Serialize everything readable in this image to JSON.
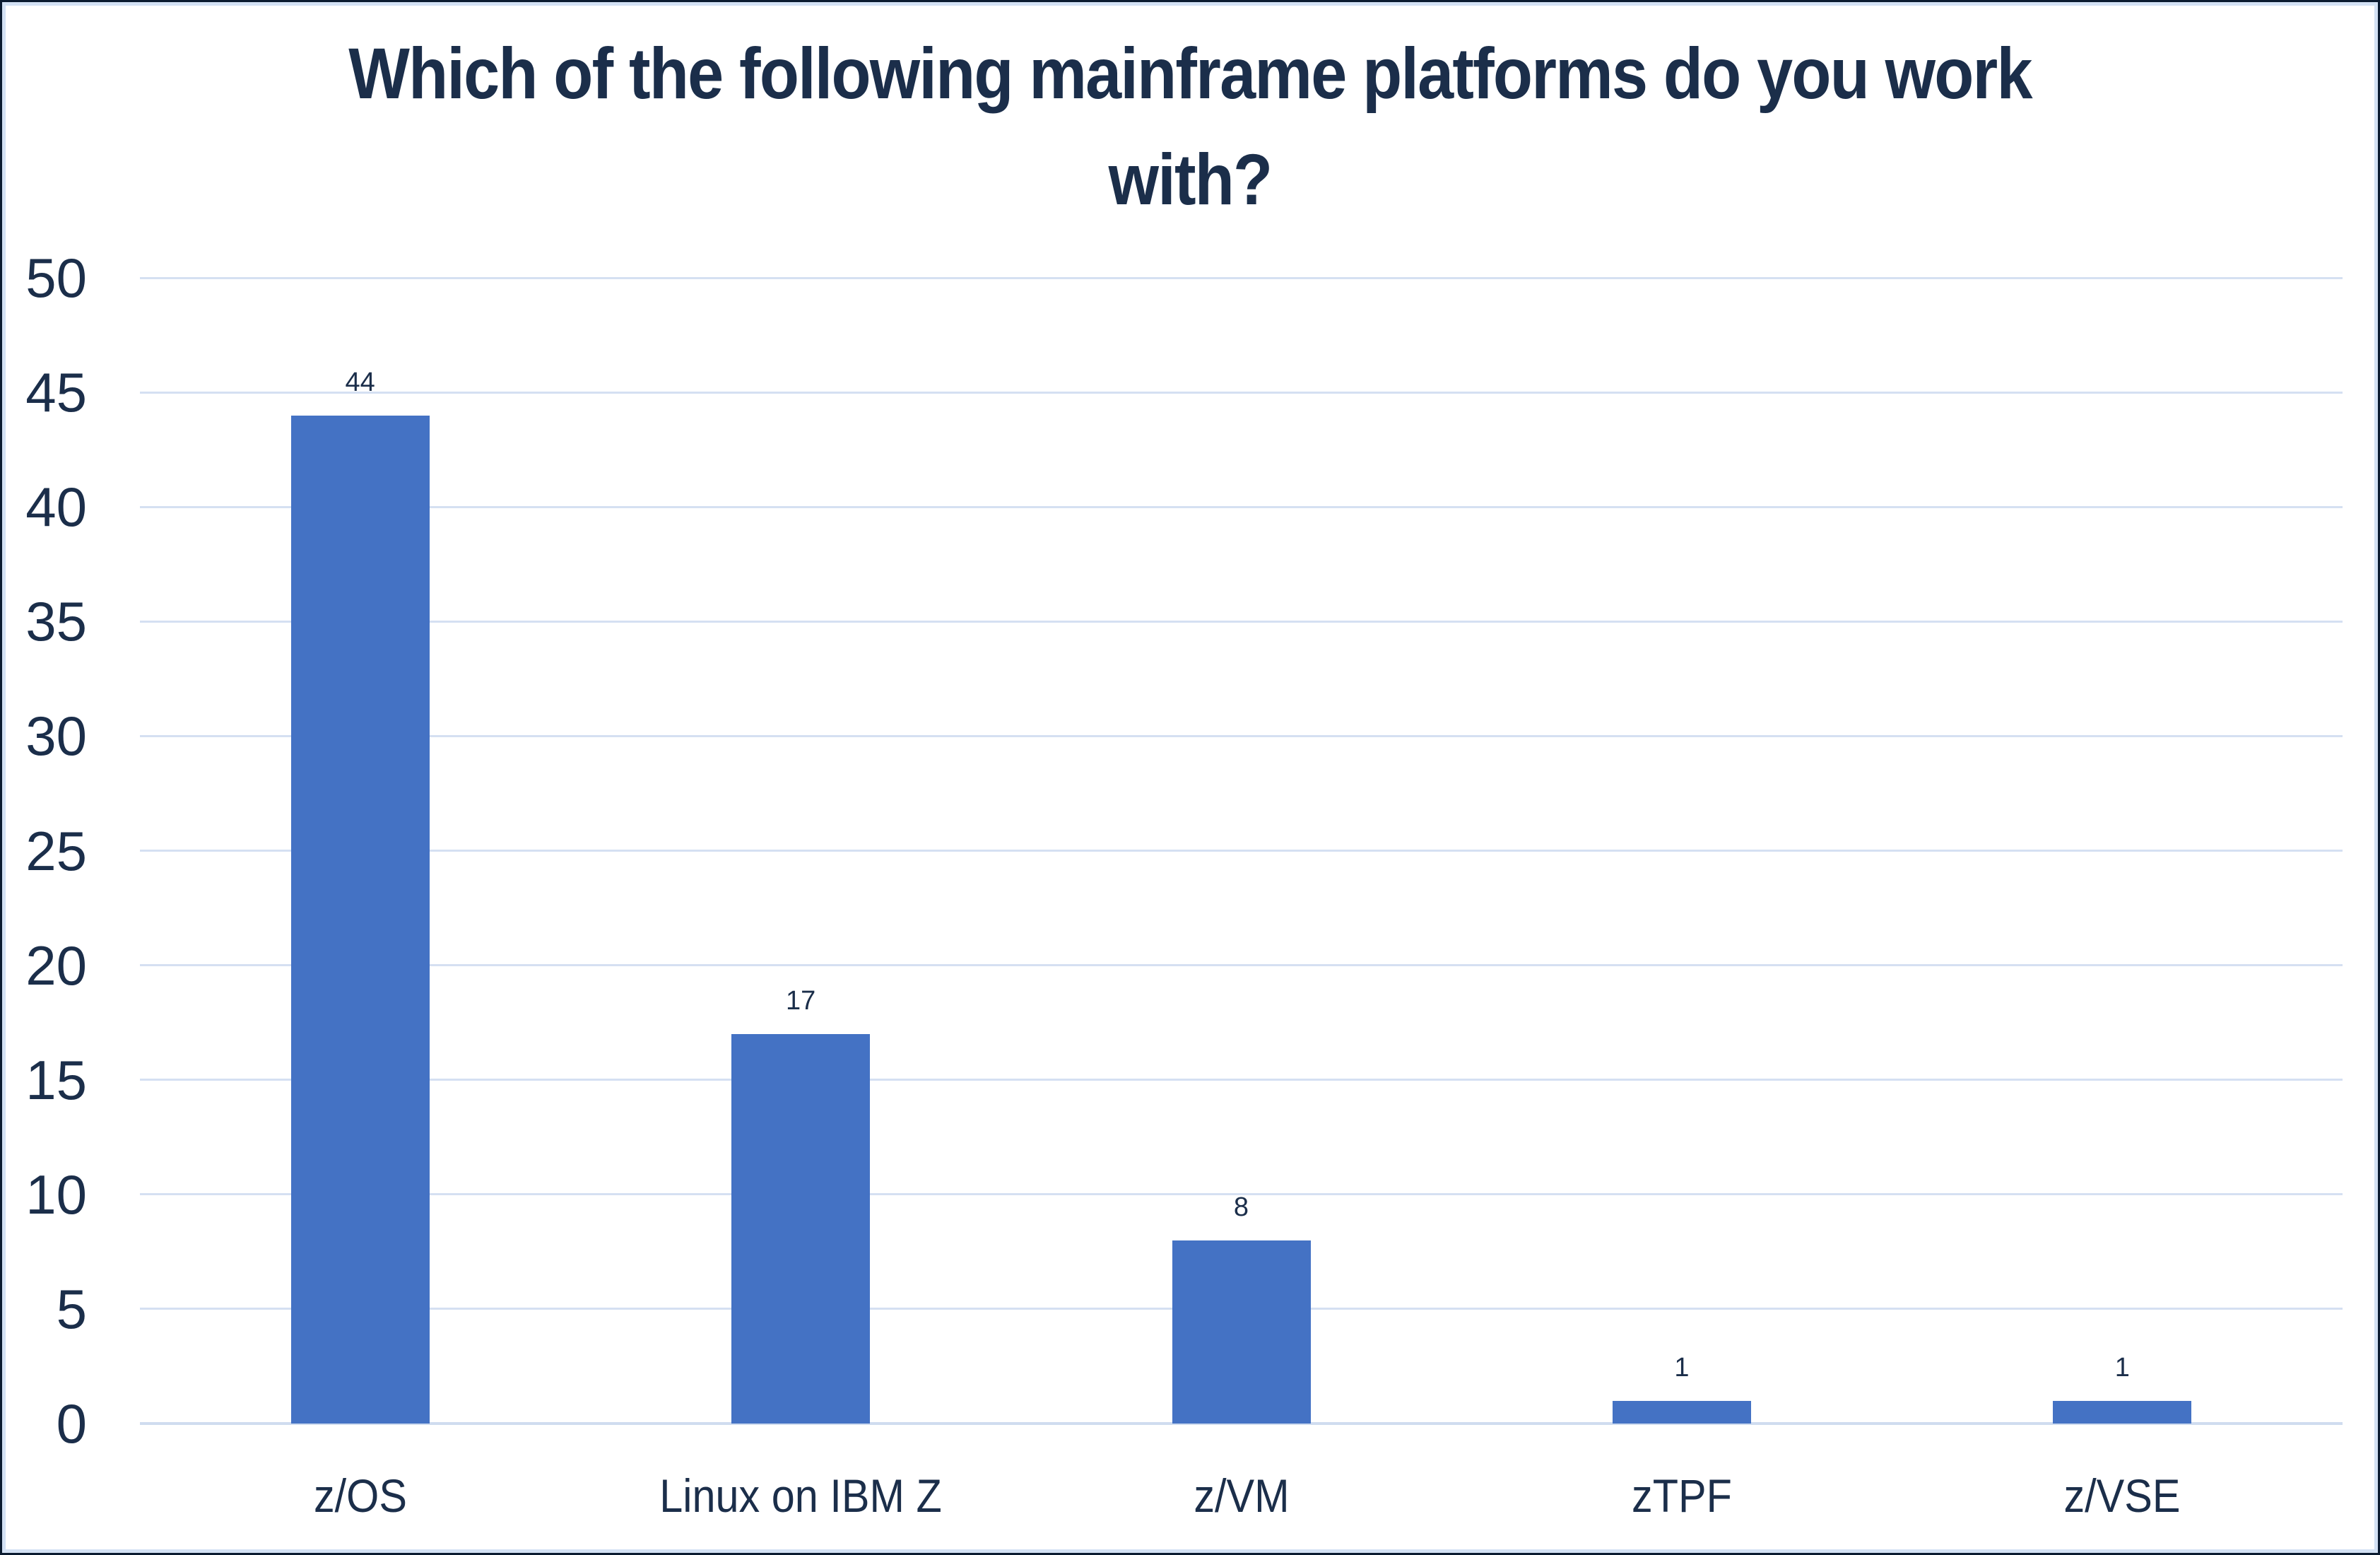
{
  "chart_data": {
    "type": "bar",
    "title": "Which of the following mainframe platforms do you work with?",
    "title_lines": [
      "Which of the following mainframe platforms do you work",
      "with?"
    ],
    "categories": [
      "z/OS",
      "Linux on IBM Z",
      "z/VM",
      "zTPF",
      "z/VSE"
    ],
    "values": [
      44,
      17,
      8,
      1,
      1
    ],
    "data_labels": [
      "44",
      "17",
      "8",
      "1",
      "1"
    ],
    "xlabel": "",
    "ylabel": "",
    "ylim": [
      0,
      50
    ],
    "ytick_step": 5,
    "yticks": [
      0,
      5,
      10,
      15,
      20,
      25,
      30,
      35,
      40,
      45,
      50
    ],
    "grid": true,
    "legend_position": "none",
    "series_color": "#4472C4"
  },
  "colors": {
    "bar_fill": "#4472C4",
    "text_navy": "#1b2e4a",
    "gridline": "#d5e0f2",
    "baseline": "#cfdcef",
    "border_outer": "#0b1b30",
    "border_inner": "#d3e1f4",
    "background": "#ffffff"
  }
}
